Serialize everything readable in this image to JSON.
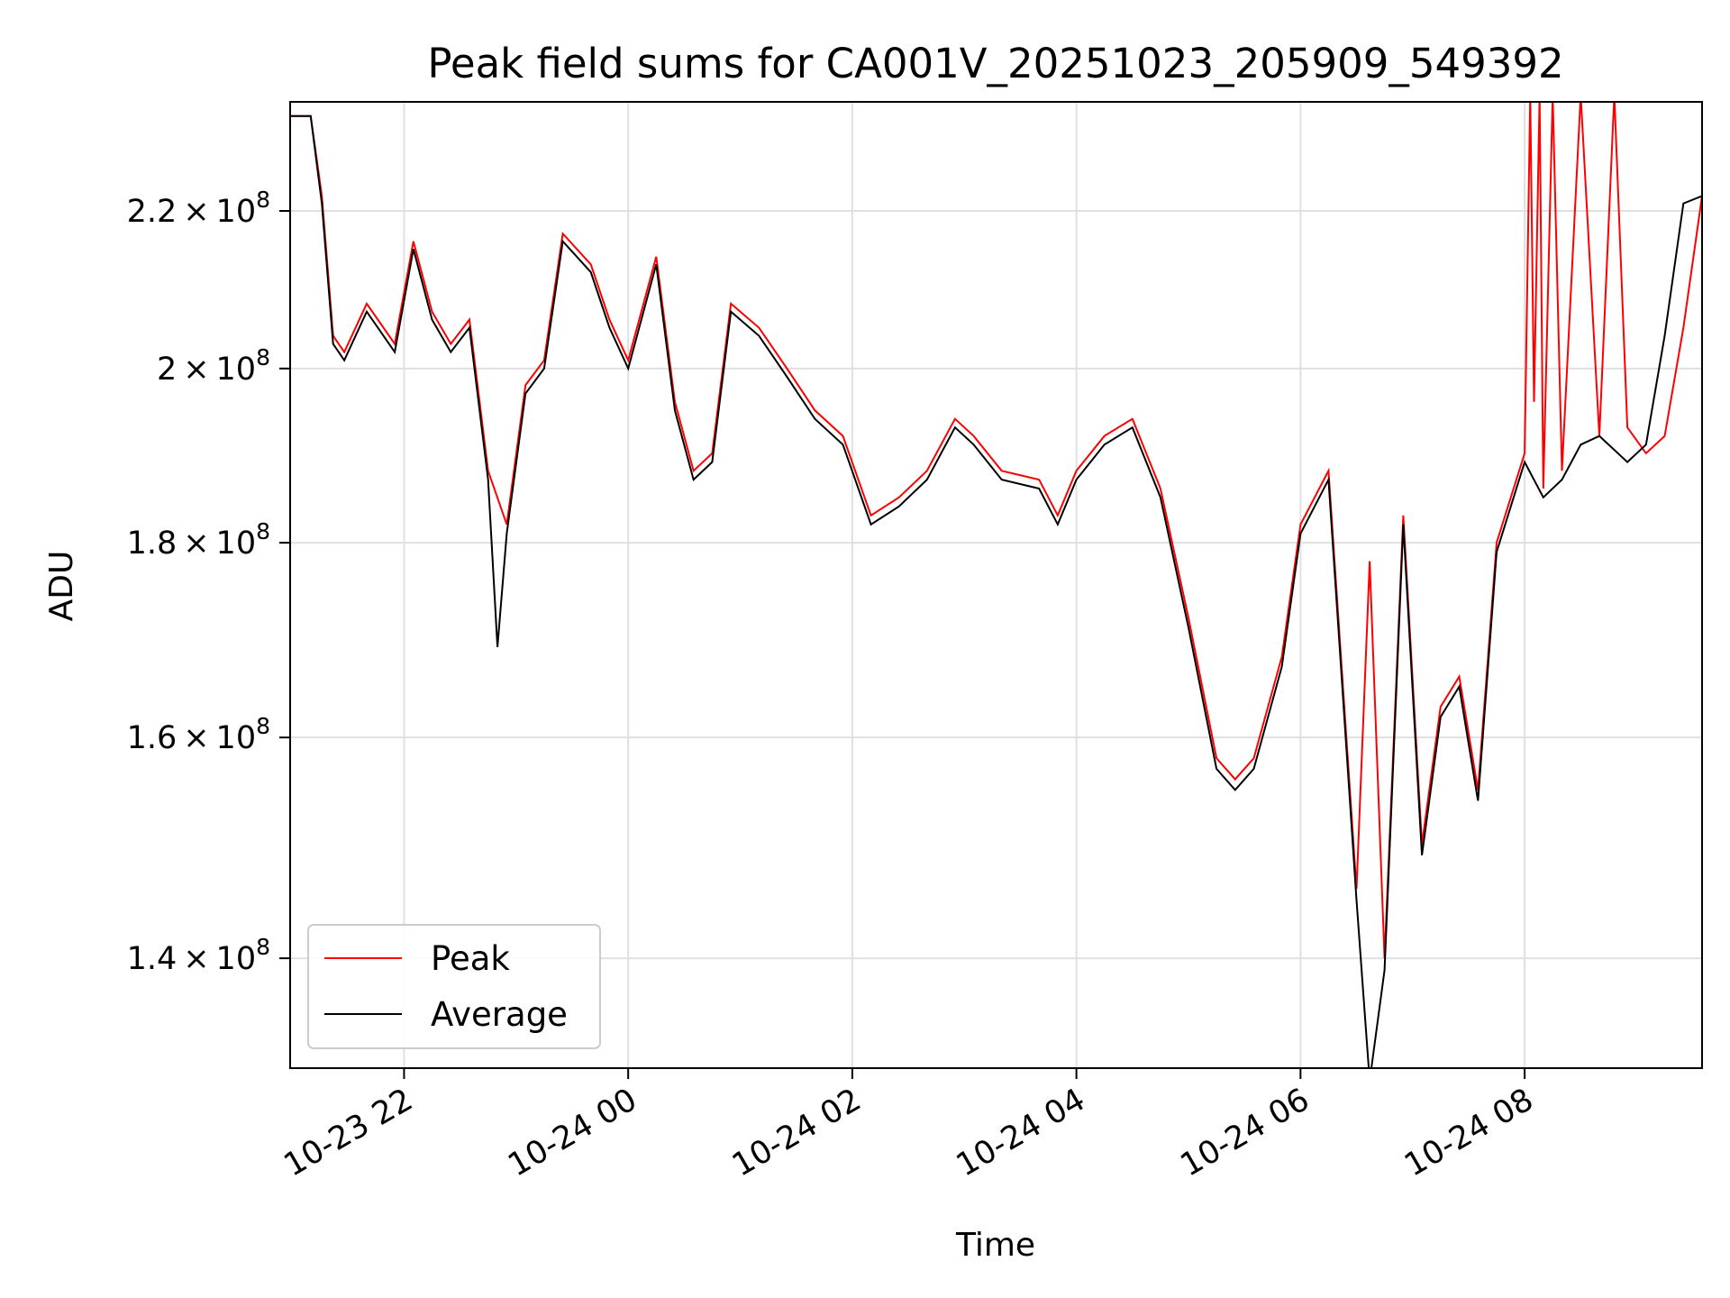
{
  "chart_data": {
    "type": "line",
    "title": "Peak field sums for CA001V_20251023_205909_549392",
    "xlabel": "Time",
    "ylabel": "ADU",
    "y_scale": "log",
    "x_unit": "hours since 10-23 21:00 (internal mapping)",
    "x_ticks": [
      {
        "label": "10-23 22",
        "value": "2025-10-23 22:00"
      },
      {
        "label": "10-24 00",
        "value": "2025-10-24 00:00"
      },
      {
        "label": "10-24 02",
        "value": "2025-10-24 02:00"
      },
      {
        "label": "10-24 04",
        "value": "2025-10-24 04:00"
      },
      {
        "label": "10-24 06",
        "value": "2025-10-24 06:00"
      },
      {
        "label": "10-24 08",
        "value": "2025-10-24 08:00"
      }
    ],
    "xlim": [
      "2025-10-23 20:59",
      "2025-10-24 09:35"
    ],
    "y_ticks": [
      {
        "value": 140000000,
        "mantissa": "1.4",
        "base": "10",
        "exp": "8"
      },
      {
        "value": 160000000,
        "mantissa": "1.6",
        "base": "10",
        "exp": "8"
      },
      {
        "value": 180000000,
        "mantissa": "1.8",
        "base": "10",
        "exp": "8"
      },
      {
        "value": 200000000,
        "mantissa": "2",
        "base": "10",
        "exp": "8"
      },
      {
        "value": 220000000,
        "mantissa": "2.2",
        "base": "10",
        "exp": "8"
      }
    ],
    "ylim": [
      131000000,
      235000000
    ],
    "grid": true,
    "legend_position": "lower-left",
    "series": [
      {
        "name": "Peak",
        "color": "#ff0000",
        "x": [
          "2025-10-23 20:59",
          "2025-10-23 21:10",
          "2025-10-23 21:16",
          "2025-10-23 21:22",
          "2025-10-23 21:28",
          "2025-10-23 21:40",
          "2025-10-23 21:55",
          "2025-10-23 22:05",
          "2025-10-23 22:15",
          "2025-10-23 22:25",
          "2025-10-23 22:35",
          "2025-10-23 22:45",
          "2025-10-23 22:55",
          "2025-10-23 23:05",
          "2025-10-23 23:15",
          "2025-10-23 23:25",
          "2025-10-23 23:40",
          "2025-10-23 23:50",
          "2025-10-24 00:00",
          "2025-10-24 00:15",
          "2025-10-24 00:25",
          "2025-10-24 00:35",
          "2025-10-24 00:45",
          "2025-10-24 00:55",
          "2025-10-24 01:10",
          "2025-10-24 01:25",
          "2025-10-24 01:40",
          "2025-10-24 01:55",
          "2025-10-24 02:10",
          "2025-10-24 02:25",
          "2025-10-24 02:40",
          "2025-10-24 02:55",
          "2025-10-24 03:05",
          "2025-10-24 03:20",
          "2025-10-24 03:40",
          "2025-10-24 03:50",
          "2025-10-24 04:00",
          "2025-10-24 04:15",
          "2025-10-24 04:30",
          "2025-10-24 04:45",
          "2025-10-24 05:00",
          "2025-10-24 05:15",
          "2025-10-24 05:25",
          "2025-10-24 05:35",
          "2025-10-24 05:50",
          "2025-10-24 06:00",
          "2025-10-24 06:15",
          "2025-10-24 06:30",
          "2025-10-24 06:37",
          "2025-10-24 06:45",
          "2025-10-24 06:55",
          "2025-10-24 07:05",
          "2025-10-24 07:15",
          "2025-10-24 07:25",
          "2025-10-24 07:35",
          "2025-10-24 07:45",
          "2025-10-24 08:00",
          "2025-10-24 08:03",
          "2025-10-24 08:05",
          "2025-10-24 08:08",
          "2025-10-24 08:10",
          "2025-10-24 08:15",
          "2025-10-24 08:20",
          "2025-10-24 08:30",
          "2025-10-24 08:40",
          "2025-10-24 08:48",
          "2025-10-24 08:55",
          "2025-10-24 09:05",
          "2025-10-24 09:15",
          "2025-10-24 09:25",
          "2025-10-24 09:35"
        ],
        "y": [
          233000000,
          233000000,
          222000000,
          204000000,
          202000000,
          208000000,
          203000000,
          216000000,
          207000000,
          203000000,
          206000000,
          188000000,
          182000000,
          198000000,
          201000000,
          217000000,
          213000000,
          206000000,
          201000000,
          214000000,
          196000000,
          188000000,
          190000000,
          208000000,
          205000000,
          200000000,
          195000000,
          192000000,
          183000000,
          185000000,
          188000000,
          194000000,
          192000000,
          188000000,
          187000000,
          183000000,
          188000000,
          192000000,
          194000000,
          186000000,
          172000000,
          158000000,
          156000000,
          158000000,
          168000000,
          182000000,
          188000000,
          146000000,
          178000000,
          140000000,
          183000000,
          150000000,
          163000000,
          166000000,
          155000000,
          180000000,
          190000000,
          236000000,
          196000000,
          236000000,
          186000000,
          236000000,
          188000000,
          236000000,
          192000000,
          236000000,
          193000000,
          190000000,
          192000000,
          205000000,
          222000000
        ]
      },
      {
        "name": "Average",
        "color": "#000000",
        "x": [
          "2025-10-23 20:59",
          "2025-10-23 21:10",
          "2025-10-23 21:16",
          "2025-10-23 21:22",
          "2025-10-23 21:28",
          "2025-10-23 21:40",
          "2025-10-23 21:55",
          "2025-10-23 22:05",
          "2025-10-23 22:15",
          "2025-10-23 22:25",
          "2025-10-23 22:35",
          "2025-10-23 22:45",
          "2025-10-23 22:50",
          "2025-10-23 22:55",
          "2025-10-23 23:05",
          "2025-10-23 23:15",
          "2025-10-23 23:25",
          "2025-10-23 23:40",
          "2025-10-23 23:50",
          "2025-10-24 00:00",
          "2025-10-24 00:15",
          "2025-10-24 00:25",
          "2025-10-24 00:35",
          "2025-10-24 00:45",
          "2025-10-24 00:55",
          "2025-10-24 01:10",
          "2025-10-24 01:25",
          "2025-10-24 01:40",
          "2025-10-24 01:55",
          "2025-10-24 02:10",
          "2025-10-24 02:25",
          "2025-10-24 02:40",
          "2025-10-24 02:55",
          "2025-10-24 03:05",
          "2025-10-24 03:20",
          "2025-10-24 03:40",
          "2025-10-24 03:50",
          "2025-10-24 04:00",
          "2025-10-24 04:15",
          "2025-10-24 04:30",
          "2025-10-24 04:45",
          "2025-10-24 05:00",
          "2025-10-24 05:15",
          "2025-10-24 05:25",
          "2025-10-24 05:35",
          "2025-10-24 05:50",
          "2025-10-24 06:00",
          "2025-10-24 06:15",
          "2025-10-24 06:30",
          "2025-10-24 06:37",
          "2025-10-24 06:45",
          "2025-10-24 06:55",
          "2025-10-24 07:05",
          "2025-10-24 07:15",
          "2025-10-24 07:25",
          "2025-10-24 07:35",
          "2025-10-24 07:45",
          "2025-10-24 08:00",
          "2025-10-24 08:10",
          "2025-10-24 08:20",
          "2025-10-24 08:30",
          "2025-10-24 08:40",
          "2025-10-24 08:55",
          "2025-10-24 09:05",
          "2025-10-24 09:15",
          "2025-10-24 09:25",
          "2025-10-24 09:35"
        ],
        "y": [
          233000000,
          233000000,
          221000000,
          203000000,
          201000000,
          207000000,
          202000000,
          215000000,
          206000000,
          202000000,
          205000000,
          187000000,
          169000000,
          181000000,
          197000000,
          200000000,
          216000000,
          212000000,
          205000000,
          200000000,
          213000000,
          195000000,
          187000000,
          189000000,
          207000000,
          204000000,
          199000000,
          194000000,
          191000000,
          182000000,
          184000000,
          187000000,
          193000000,
          191000000,
          187000000,
          186000000,
          182000000,
          187000000,
          191000000,
          193000000,
          185000000,
          171000000,
          157000000,
          155000000,
          157000000,
          167000000,
          181000000,
          187000000,
          145000000,
          130000000,
          139000000,
          182000000,
          149000000,
          162000000,
          165000000,
          154000000,
          179000000,
          189000000,
          185000000,
          187000000,
          191000000,
          192000000,
          189000000,
          191000000,
          204000000,
          221000000,
          222000000
        ]
      }
    ]
  }
}
